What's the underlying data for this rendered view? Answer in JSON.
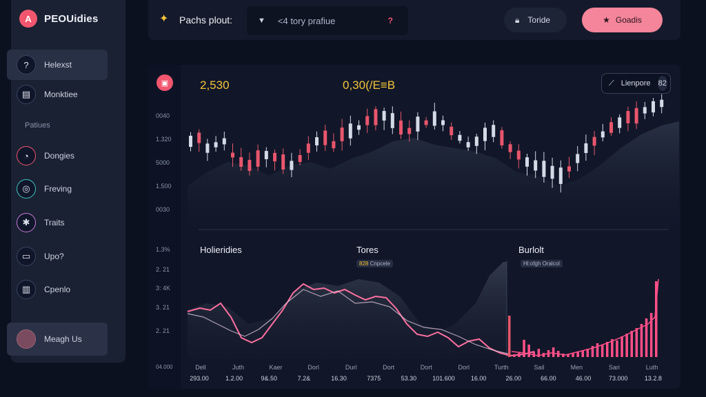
{
  "brand": {
    "name": "PEOUidies",
    "logo_letter": "A"
  },
  "sidebar": {
    "items": [
      {
        "label": "Helexst",
        "icon": "question-icon",
        "glyph": "?"
      },
      {
        "label": "Monktiee",
        "icon": "grid-icon",
        "glyph": "▤"
      }
    ],
    "section_label": "Patiues",
    "section_items": [
      {
        "label": "Dongies",
        "icon": "gauge-icon",
        "glyph": "◔"
      },
      {
        "label": "Freving",
        "icon": "target-icon",
        "glyph": "◎"
      },
      {
        "label": "Traits",
        "icon": "asterisk-icon",
        "glyph": "✱"
      },
      {
        "label": "Upo?",
        "icon": "file-icon",
        "glyph": "▭"
      },
      {
        "label": "Cpenlo",
        "icon": "tag-icon",
        "glyph": "▥"
      }
    ],
    "bottom_item": {
      "label": "Meagh Us",
      "icon": "avatar-icon"
    }
  },
  "topbar": {
    "title": "Pachs plout:",
    "title_icon": "spark-icon",
    "selector_text": "<4 tory prafiue",
    "selector_mark": "?",
    "pill_dark_label": "Toride",
    "pill_dark_icon": "lock-icon",
    "pill_pink_label": "Goadis",
    "pill_pink_icon": "star-icon"
  },
  "main": {
    "stat_left": "2,530",
    "stat_right": "0,30(/E≡B",
    "legend_label": "Lienpore",
    "legend_count": "82",
    "top_y_labels": [
      "0040",
      "1.320",
      "5000",
      "1.500",
      "0030"
    ],
    "bottom_y_labels": [
      "1.3%",
      "2. 21",
      "3: 4K",
      "3. 21",
      "2. 21"
    ],
    "axis_corner": "04.000",
    "panels": [
      {
        "title": "Holieridies",
        "tag": ""
      },
      {
        "title": "Tores",
        "tag_highlight": "828",
        "tag_rest": " Cnpcele"
      },
      {
        "title": "Burlolt",
        "tag": "Hl:ofgh Oralcol"
      }
    ],
    "x_labels_top": [
      "Dell",
      "Juth",
      "Kaer",
      "Dorl",
      "Durl",
      "Dort",
      "Dort",
      "Dorl",
      "Turth",
      "Sail",
      "Men",
      "Sari",
      "Luth"
    ],
    "x_labels_bottom": [
      "293.00",
      "1.2.00",
      "9&.50",
      "7.2&",
      "16.30",
      "7375",
      "53.30",
      "101.600",
      "16.00",
      "26.00",
      "66.00",
      "46.00",
      "73.000",
      "13.2.8"
    ]
  },
  "colors": {
    "accent": "#f2566f",
    "gold": "#f5c43a",
    "pink": "#f5859a",
    "up": "#d4dbe7",
    "down": "#e8566c"
  }
}
